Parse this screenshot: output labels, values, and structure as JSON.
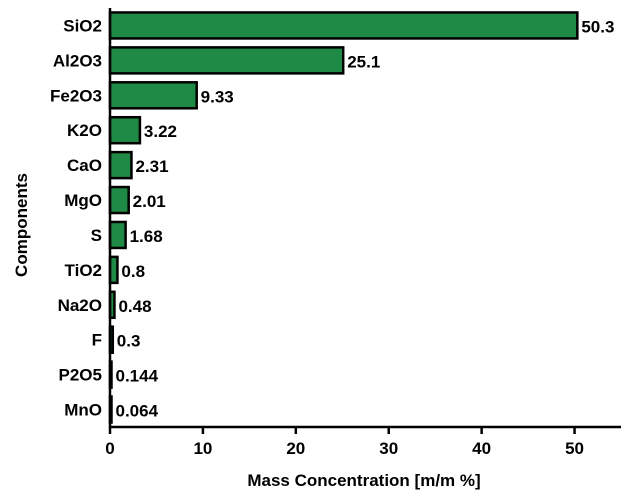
{
  "chart_data": {
    "type": "bar",
    "orientation": "horizontal",
    "title": "",
    "xlabel": "Mass Concentration [m/m %]",
    "ylabel": "Components",
    "categories": [
      "SiO2",
      "Al2O3",
      "Fe2O3",
      "K2O",
      "CaO",
      "MgO",
      "S",
      "TiO2",
      "Na2O",
      "F",
      "P2O5",
      "MnO"
    ],
    "values": [
      50.3,
      25.1,
      9.33,
      3.22,
      2.31,
      2.01,
      1.68,
      0.8,
      0.48,
      0.3,
      0.144,
      0.064
    ],
    "value_labels": [
      "50.3",
      "25.1",
      "9.33",
      "3.22",
      "2.31",
      "2.01",
      "1.68",
      "0.8",
      "0.48",
      "0.3",
      "0.144",
      "0.064"
    ],
    "xlim": [
      0,
      55
    ],
    "xticks": [
      0,
      10,
      20,
      30,
      40,
      50
    ],
    "grid": false,
    "bar_color": "#1f8a45",
    "bar_edge_color": "#000000"
  }
}
